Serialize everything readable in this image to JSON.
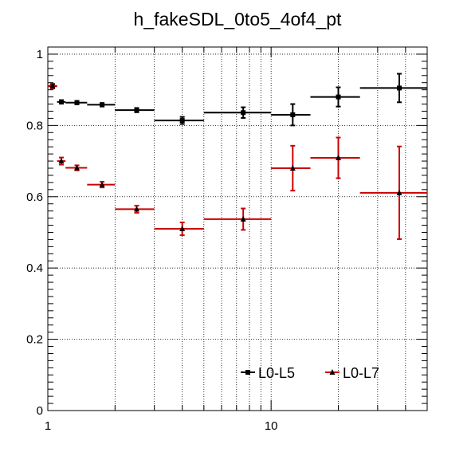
{
  "chart_data": {
    "type": "scatter",
    "title": "h_fakeSDL_0to5_4of4_pt",
    "xlabel": "",
    "ylabel": "",
    "x_scale": "log",
    "xlim": [
      1,
      50
    ],
    "ylim": [
      0,
      1.02
    ],
    "x_tick_labels": [
      {
        "value": 1,
        "label": "1"
      },
      {
        "value": 10,
        "label": "10"
      }
    ],
    "y_tick_labels": [
      {
        "value": 0,
        "label": "0"
      },
      {
        "value": 0.2,
        "label": "0.2"
      },
      {
        "value": 0.4,
        "label": "0.4"
      },
      {
        "value": 0.6,
        "label": "0.6"
      },
      {
        "value": 0.8,
        "label": "0.8"
      },
      {
        "value": 1,
        "label": "1"
      }
    ],
    "grid": true,
    "legend_position": "bottom-right",
    "series": [
      {
        "name": "L0-L5",
        "color": "#000000",
        "marker": "square",
        "points": [
          {
            "x": 1.05,
            "xlo": 1.0,
            "xhi": 1.1,
            "y": 0.91,
            "err": 0.006
          },
          {
            "x": 1.15,
            "xlo": 1.1,
            "xhi": 1.2,
            "y": 0.866,
            "err": 0.005
          },
          {
            "x": 1.35,
            "xlo": 1.2,
            "xhi": 1.5,
            "y": 0.864,
            "err": 0.005
          },
          {
            "x": 1.75,
            "xlo": 1.5,
            "xhi": 2.0,
            "y": 0.858,
            "err": 0.005
          },
          {
            "x": 2.5,
            "xlo": 2.0,
            "xhi": 3.0,
            "y": 0.843,
            "err": 0.006
          },
          {
            "x": 4.0,
            "xlo": 3.0,
            "xhi": 5.0,
            "y": 0.814,
            "err": 0.01
          },
          {
            "x": 7.5,
            "xlo": 5.0,
            "xhi": 10.0,
            "y": 0.836,
            "err": 0.015
          },
          {
            "x": 12.5,
            "xlo": 10.0,
            "xhi": 15.0,
            "y": 0.83,
            "err": 0.03
          },
          {
            "x": 20.0,
            "xlo": 15.0,
            "xhi": 25.0,
            "y": 0.88,
            "err": 0.027
          },
          {
            "x": 37.5,
            "xlo": 25.0,
            "xhi": 50.0,
            "y": 0.905,
            "err": 0.04
          }
        ]
      },
      {
        "name": "L0-L7",
        "color": "#cc0000",
        "marker": "triangle",
        "points": [
          {
            "x": 1.05,
            "xlo": 1.0,
            "xhi": 1.1,
            "y": 0.911,
            "err": 0.006
          },
          {
            "x": 1.15,
            "xlo": 1.1,
            "xhi": 1.2,
            "y": 0.7,
            "err": 0.01
          },
          {
            "x": 1.35,
            "xlo": 1.2,
            "xhi": 1.5,
            "y": 0.681,
            "err": 0.007
          },
          {
            "x": 1.75,
            "xlo": 1.5,
            "xhi": 2.0,
            "y": 0.634,
            "err": 0.008
          },
          {
            "x": 2.5,
            "xlo": 2.0,
            "xhi": 3.0,
            "y": 0.565,
            "err": 0.01
          },
          {
            "x": 4.0,
            "xlo": 3.0,
            "xhi": 5.0,
            "y": 0.51,
            "err": 0.018
          },
          {
            "x": 7.5,
            "xlo": 5.0,
            "xhi": 10.0,
            "y": 0.537,
            "err": 0.03
          },
          {
            "x": 12.5,
            "xlo": 10.0,
            "xhi": 15.0,
            "y": 0.68,
            "err": 0.063
          },
          {
            "x": 20.0,
            "xlo": 15.0,
            "xhi": 25.0,
            "y": 0.709,
            "err": 0.057
          },
          {
            "x": 37.5,
            "xlo": 25.0,
            "xhi": 50.0,
            "y": 0.611,
            "err": 0.13
          }
        ]
      }
    ]
  }
}
